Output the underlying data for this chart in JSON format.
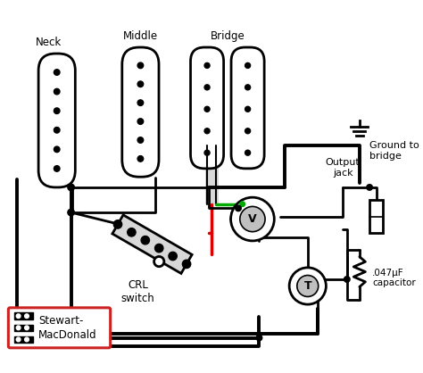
{
  "bg_color": "#ffffff",
  "lc": "#000000",
  "lw": 2.0,
  "tlw": 2.8,
  "gray": "#c0c0c0",
  "lgray": "#d8d8d8",
  "red": "#dd0000",
  "green": "#00aa00",
  "label_neck": "Neck",
  "label_middle": "Middle",
  "label_bridge": "Bridge",
  "label_ground": "Ground to\nbridge",
  "label_output": "Output\njack",
  "label_crl": "CRL\nswitch",
  "label_cap": ".047μF\ncapacitor",
  "label_v": "V",
  "label_t": "T",
  "brand_red": "#cc2222"
}
